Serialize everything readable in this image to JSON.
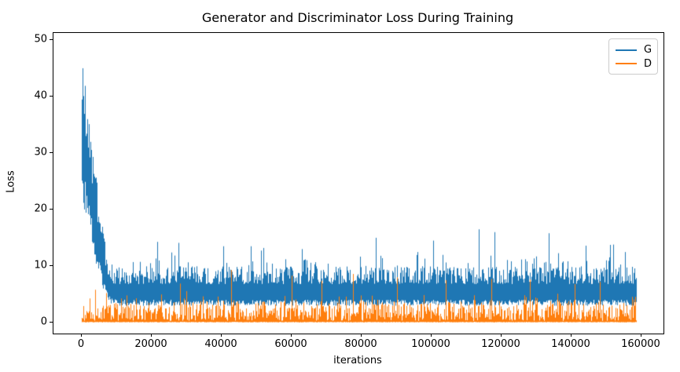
{
  "chart_data": {
    "type": "line",
    "title": "Generator and Discriminator Loss During Training",
    "xlabel": "iterations",
    "ylabel": "Loss",
    "xlim": [
      -8100,
      166300
    ],
    "ylim": [
      -1.95,
      51.25
    ],
    "xticks": [
      0,
      20000,
      40000,
      60000,
      80000,
      100000,
      120000,
      140000,
      160000
    ],
    "yticks": [
      0,
      10,
      20,
      30,
      40,
      50
    ],
    "grid": false,
    "legend_position": "upper right",
    "x_data_max": 158500,
    "seed": 20,
    "series": [
      {
        "name": "G",
        "color": "#1f77b4",
        "description": "Generator loss: peaks ~48.5 near iteration 300, decays noisily to ~6 by iteration 8000, then fluctuates in a 3.5-10 band with spikes to ~16.5 until ~158500 iterations",
        "envelope": [
          [
            0,
            24,
            48.5
          ],
          [
            800,
            23,
            44
          ],
          [
            1600,
            20,
            38
          ],
          [
            2400,
            18,
            33
          ],
          [
            3200,
            15,
            29
          ],
          [
            4200,
            12,
            25
          ],
          [
            5200,
            9,
            21
          ],
          [
            6200,
            6.5,
            16.5
          ],
          [
            7200,
            5,
            12.5
          ],
          [
            8200,
            4,
            10
          ],
          [
            10000,
            3.6,
            10
          ],
          [
            158500,
            3.6,
            10
          ]
        ],
        "spike_cap": 16.8,
        "spikes": [
          [
            14600,
            10.7
          ],
          [
            25500,
            12.4
          ],
          [
            40500,
            13.5
          ],
          [
            52000,
            13.2
          ],
          [
            63000,
            13.0
          ],
          [
            84000,
            15.0
          ],
          [
            100500,
            14.5
          ],
          [
            113500,
            16.5
          ],
          [
            118000,
            16.0
          ],
          [
            133400,
            15.8
          ],
          [
            144000,
            13.6
          ],
          [
            152000,
            13.8
          ]
        ]
      },
      {
        "name": "D",
        "color": "#ff7f0e",
        "description": "Discriminator loss: stays low, dense band ~0-3.6 with frequent spikes to 5-7 and rare spikes to ~9.3",
        "envelope": [
          [
            0,
            0.05,
            1.8
          ],
          [
            2000,
            0.05,
            2.4
          ],
          [
            4000,
            0.05,
            3.0
          ],
          [
            8000,
            0.05,
            3.6
          ],
          [
            158500,
            0.05,
            3.6
          ]
        ],
        "spike_cap": 9.3,
        "spikes": [
          [
            3800,
            5.8
          ],
          [
            12800,
            4.8
          ],
          [
            28000,
            6.9
          ],
          [
            42800,
            9.3
          ],
          [
            60000,
            8.3
          ],
          [
            68500,
            7.4
          ],
          [
            77500,
            8.6
          ],
          [
            90000,
            8.0
          ],
          [
            104000,
            7.5
          ],
          [
            117000,
            7.7
          ],
          [
            128000,
            7.6
          ],
          [
            141000,
            6.8
          ],
          [
            148000,
            7.2
          ]
        ]
      }
    ]
  }
}
